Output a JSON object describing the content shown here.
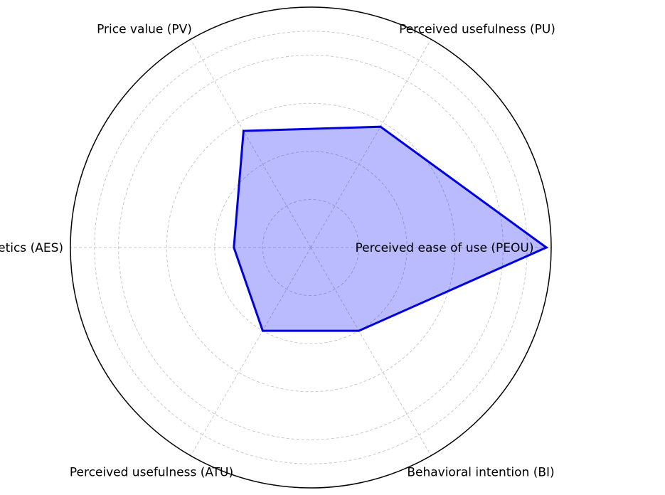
{
  "chart_data": {
    "type": "radar",
    "title": "",
    "categories": [
      "Perceived ease of use (PEOU)",
      "Perceived usefulness (PU)",
      "Price value (PV)",
      "Aesthetics (AES)",
      "Perceived usefulness (ATU)",
      "Behavioral intention (BI)"
    ],
    "series": [
      {
        "values": [
          0.98,
          0.58,
          0.56,
          0.32,
          0.4,
          0.4
        ],
        "line_color": "#0000dd",
        "fill_color": "#0000ff",
        "fill_opacity": 0.27
      }
    ],
    "rlim": [
      0,
      1
    ],
    "grid": true,
    "grid_rings": [
      0.2,
      0.4,
      0.6,
      0.8,
      0.9
    ],
    "grid_color": "#c8c8c8"
  }
}
